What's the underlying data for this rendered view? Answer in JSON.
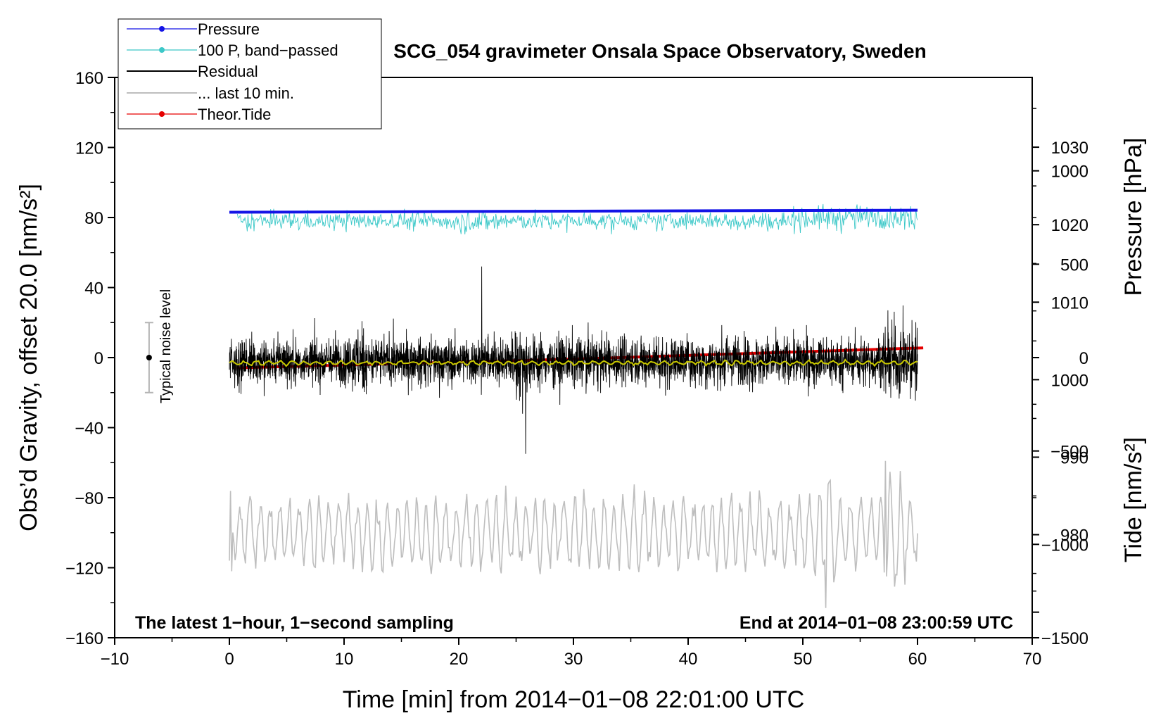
{
  "chart_data": {
    "type": "line",
    "title": "SCG_054 gravimeter Onsala Space Observatory, Sweden",
    "xlabel": "Time [min] from 2014−01−08 22:01:00 UTC",
    "ylabel_left": "Obs’d Gravity, offset 20.0 [nm/s²]",
    "ylabel_right_top": "Pressure [hPa]",
    "ylabel_right_bottom": "Tide [nm/s²]",
    "xlim": [
      -10,
      70
    ],
    "ylim_left": [
      -160,
      160
    ],
    "pressure_axis_range": [
      966.7,
      1039
    ],
    "tide_axis_range": [
      -1500,
      1500
    ],
    "x_ticks": [
      -10,
      0,
      10,
      20,
      30,
      40,
      50,
      60,
      70
    ],
    "x_tick_labels": [
      "−10",
      "0",
      "10",
      "20",
      "30",
      "40",
      "50",
      "60",
      "70"
    ],
    "y_left_ticks": [
      160,
      120,
      80,
      40,
      0,
      -40,
      -80,
      -120,
      -160
    ],
    "y_left_tick_labels": [
      "160",
      "120",
      "80",
      "40",
      "0",
      "−40",
      "−80",
      "−120",
      "−160"
    ],
    "pressure_ticks": [
      1030,
      1020,
      1010,
      1000,
      990,
      980
    ],
    "pressure_tick_labels": [
      "1030",
      "1020",
      "1010",
      "1000",
      "990",
      "980"
    ],
    "tide_ticks": [
      1000,
      500,
      0,
      -500,
      -1000,
      -1500
    ],
    "tide_tick_labels": [
      "1000",
      "500",
      "0",
      "−500",
      "−1000",
      "−1500"
    ],
    "legend": [
      {
        "label": "Pressure",
        "color": "#1414e6",
        "marker": true
      },
      {
        "label": "100 P, band−passed",
        "color": "#3cc8c8",
        "marker": true
      },
      {
        "label": "Residual",
        "color": "#000000",
        "marker": false
      },
      {
        "label": "... last 10 min.",
        "color": "#bebebe",
        "marker": false
      },
      {
        "label": "Theor.Tide",
        "color": "#e60000",
        "marker": true
      }
    ],
    "series": [
      {
        "name": "Pressure",
        "axis": "left",
        "color": "#1414e6",
        "x": [
          0,
          30,
          60
        ],
        "y": [
          83.0,
          83.6,
          84.2
        ]
      },
      {
        "name": "100 P, band−passed",
        "axis": "left",
        "color": "#3cc8c8",
        "x_range": [
          0.7,
          60
        ],
        "center": 78,
        "amplitude": 5
      },
      {
        "name": "Residual",
        "axis": "left",
        "color": "#000000",
        "x_range": [
          0,
          60
        ],
        "center": -2,
        "amplitude": 15,
        "y_max": 52,
        "y_min": -55
      },
      {
        "name": "Residual smoothed",
        "axis": "left",
        "color": "#c8c800",
        "x_range": [
          0,
          60
        ],
        "center": -3
      },
      {
        "name": "... last 10 min.",
        "axis": "left",
        "color": "#bebebe",
        "x_range": [
          0,
          60
        ],
        "center": -100,
        "amplitude": 20,
        "y_max": -59,
        "y_min": -143
      },
      {
        "name": "Theor.Tide",
        "axis": "tide",
        "color": "#e60000",
        "x": [
          0.6,
          30,
          60.5
        ],
        "y": [
          -55,
          -8,
          52
        ]
      }
    ],
    "noise_bar": {
      "x": -7,
      "y": 0,
      "low": -20,
      "high": 20,
      "label": "Typical noise level"
    },
    "annotations": {
      "left": "The latest 1−hour, 1−second sampling",
      "right": "End at 2014−01−08 23:00:59 UTC"
    }
  }
}
